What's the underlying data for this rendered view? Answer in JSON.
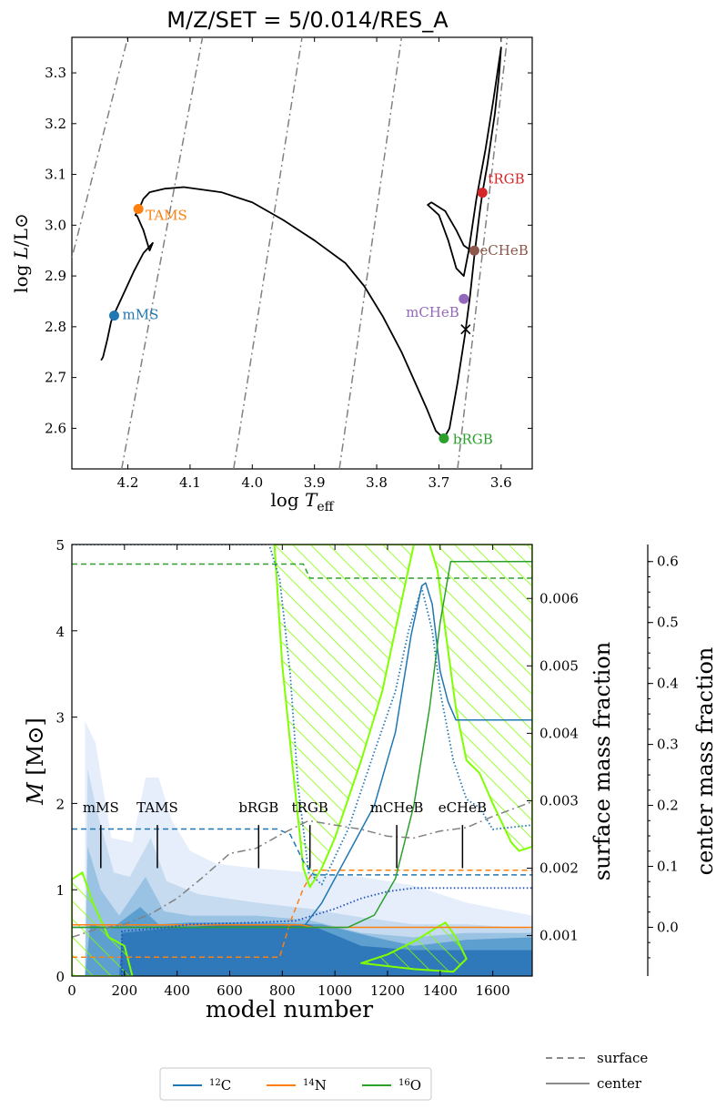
{
  "chart_data": [
    {
      "type": "line",
      "title": "M/Z/SET = 5/0.014/RES_A",
      "xlabel": "log T_eff",
      "ylabel": "log L/L⊙",
      "xlim": [
        4.29,
        3.55
      ],
      "ylim": [
        2.52,
        3.37
      ],
      "xticks": [
        4.2,
        4.1,
        4.0,
        3.9,
        3.8,
        3.7,
        3.6
      ],
      "yticks": [
        2.6,
        2.7,
        2.8,
        2.9,
        3.0,
        3.1,
        3.2,
        3.3
      ],
      "track": [
        [
          4.243,
          2.734
        ],
        [
          4.24,
          2.74
        ],
        [
          4.233,
          2.775
        ],
        [
          4.227,
          2.81
        ],
        [
          4.222,
          2.825
        ],
        [
          4.205,
          2.87
        ],
        [
          4.19,
          2.91
        ],
        [
          4.175,
          2.945
        ],
        [
          4.16,
          2.965
        ],
        [
          4.165,
          2.95
        ],
        [
          4.175,
          2.99
        ],
        [
          4.185,
          3.018
        ],
        [
          4.188,
          3.02
        ],
        [
          4.182,
          3.032
        ],
        [
          4.175,
          3.052
        ],
        [
          4.165,
          3.065
        ],
        [
          4.14,
          3.072
        ],
        [
          4.11,
          3.075
        ],
        [
          4.05,
          3.065
        ],
        [
          4.0,
          3.045
        ],
        [
          3.95,
          3.01
        ],
        [
          3.9,
          2.97
        ],
        [
          3.85,
          2.925
        ],
        [
          3.82,
          2.88
        ],
        [
          3.79,
          2.82
        ],
        [
          3.76,
          2.75
        ],
        [
          3.74,
          2.695
        ],
        [
          3.72,
          2.64
        ],
        [
          3.705,
          2.595
        ],
        [
          3.692,
          2.58
        ],
        [
          3.683,
          2.6
        ],
        [
          3.67,
          2.69
        ],
        [
          3.658,
          2.785
        ],
        [
          3.65,
          2.86
        ],
        [
          3.643,
          2.94
        ],
        [
          3.635,
          3.02
        ],
        [
          3.63,
          3.064
        ],
        [
          3.622,
          3.12
        ],
        [
          3.61,
          3.22
        ],
        [
          3.603,
          3.3
        ],
        [
          3.6,
          3.35
        ],
        [
          3.612,
          3.25
        ],
        [
          3.625,
          3.15
        ],
        [
          3.64,
          3.05
        ],
        [
          3.652,
          2.95
        ],
        [
          3.66,
          2.9
        ],
        [
          3.672,
          2.915
        ],
        [
          3.685,
          2.97
        ],
        [
          3.7,
          3.02
        ],
        [
          3.718,
          3.04
        ],
        [
          3.712,
          3.045
        ],
        [
          3.69,
          3.028
        ],
        [
          3.672,
          2.99
        ],
        [
          3.66,
          2.96
        ],
        [
          3.648,
          2.95
        ]
      ],
      "points": [
        {
          "label": "mMS",
          "x": 4.222,
          "y": 2.822,
          "color": "#1f77b4"
        },
        {
          "label": "TAMS",
          "x": 4.183,
          "y": 3.032,
          "color": "#ff7f0e"
        },
        {
          "label": "bRGB",
          "x": 3.692,
          "y": 2.58,
          "color": "#2ca02c"
        },
        {
          "label": "tRGB",
          "x": 3.63,
          "y": 3.064,
          "color": "#d62728"
        },
        {
          "label": "mCHeB",
          "x": 3.66,
          "y": 2.855,
          "color": "#9467bd"
        },
        {
          "label": "eCHeB",
          "x": 3.643,
          "y": 2.95,
          "color": "#8c564b"
        }
      ],
      "marker_x": {
        "x": 3.657,
        "y": 2.795
      },
      "iso_radius_lines": [
        [
          [
            4.37,
            2.55
          ],
          [
            4.2,
            3.37
          ]
        ],
        [
          [
            4.21,
            2.52
          ],
          [
            4.08,
            3.37
          ]
        ],
        [
          [
            4.03,
            2.52
          ],
          [
            3.92,
            3.37
          ]
        ],
        [
          [
            3.86,
            2.52
          ],
          [
            3.76,
            3.37
          ]
        ],
        [
          [
            3.67,
            2.52
          ],
          [
            3.59,
            3.37
          ]
        ]
      ]
    },
    {
      "type": "area",
      "xlabel": "model number",
      "ylabel": "M [M⊙]",
      "y2label": "surface mass fraction",
      "y3label": "center mass fraction",
      "xlim": [
        0,
        1750
      ],
      "ylim": [
        0,
        5
      ],
      "y2lim": [
        0.0004,
        0.0068
      ],
      "y3lim": [
        -0.08,
        0.628
      ],
      "xticks": [
        0,
        200,
        400,
        600,
        800,
        1000,
        1200,
        1400,
        1600
      ],
      "yticks": [
        0,
        1,
        2,
        3,
        4,
        5
      ],
      "y2ticks": [
        0.001,
        0.002,
        0.003,
        0.004,
        0.005,
        0.006
      ],
      "y2ticklabels": [
        "0.001",
        "0.002",
        "0.003",
        "0.004",
        "0.005",
        "0.006"
      ],
      "y3ticks": [
        0.0,
        0.1,
        0.2,
        0.3,
        0.4,
        0.5,
        0.6
      ],
      "y3ticklabels": [
        "0.0",
        "0.1",
        "0.2",
        "0.3",
        "0.4",
        "0.5",
        "0.6"
      ],
      "events": [
        {
          "label": "mMS",
          "x": 110
        },
        {
          "label": "TAMS",
          "x": 325
        },
        {
          "label": "bRGB",
          "x": 710
        },
        {
          "label": "tRGB",
          "x": 905
        },
        {
          "label": "mCHeB",
          "x": 1235
        },
        {
          "label": "eCHeB",
          "x": 1485
        }
      ],
      "series": [
        {
          "name": "12C surface",
          "color": "#1f77b4",
          "style": "dash",
          "axis": "surface",
          "points": [
            [
              0,
              0.00258
            ],
            [
              780,
              0.00258
            ],
            [
              830,
              0.0025
            ],
            [
              880,
              0.0021
            ],
            [
              920,
              0.0019
            ],
            [
              1750,
              0.0019
            ]
          ]
        },
        {
          "name": "14N surface",
          "color": "#ff7f0e",
          "style": "dash",
          "axis": "surface",
          "points": [
            [
              0,
              0.00068
            ],
            [
              790,
              0.00068
            ],
            [
              830,
              0.0012
            ],
            [
              880,
              0.0017
            ],
            [
              920,
              0.00197
            ],
            [
              1750,
              0.00197
            ]
          ]
        },
        {
          "name": "16O surface",
          "color": "#2ca02c",
          "style": "dash",
          "axis": "surface",
          "points": [
            [
              0,
              0.00651
            ],
            [
              880,
              0.00651
            ],
            [
              905,
              0.0063
            ],
            [
              1750,
              0.0063
            ]
          ]
        },
        {
          "name": "12C center",
          "color": "#1f77b4",
          "style": "solid",
          "axis": "center",
          "points": [
            [
              0,
              0.0
            ],
            [
              880,
              0.0
            ],
            [
              950,
              0.04
            ],
            [
              1050,
              0.12
            ],
            [
              1150,
              0.2
            ],
            [
              1230,
              0.32
            ],
            [
              1290,
              0.48
            ],
            [
              1330,
              0.56
            ],
            [
              1345,
              0.565
            ],
            [
              1370,
              0.53
            ],
            [
              1400,
              0.42
            ],
            [
              1430,
              0.37
            ],
            [
              1460,
              0.34
            ],
            [
              1750,
              0.34
            ]
          ]
        },
        {
          "name": "14N center",
          "color": "#ff7f0e",
          "style": "solid",
          "axis": "center",
          "points": [
            [
              0,
              0.004
            ],
            [
              870,
              0.004
            ],
            [
              920,
              0.0
            ],
            [
              1750,
              0.0
            ]
          ]
        },
        {
          "name": "16O center",
          "color": "#2ca02c",
          "style": "solid",
          "axis": "center",
          "points": [
            [
              0,
              0.0
            ],
            [
              1050,
              0.0
            ],
            [
              1150,
              0.02
            ],
            [
              1230,
              0.08
            ],
            [
              1300,
              0.2
            ],
            [
              1360,
              0.36
            ],
            [
              1400,
              0.5
            ],
            [
              1440,
              0.6
            ],
            [
              1750,
              0.6
            ]
          ]
        },
        {
          "name": "mass profile",
          "color": "#808080",
          "style": "dashdot",
          "axis": "mass",
          "points": [
            [
              0,
              0.45
            ],
            [
              100,
              0.55
            ],
            [
              200,
              0.6
            ],
            [
              300,
              0.72
            ],
            [
              400,
              0.9
            ],
            [
              500,
              1.15
            ],
            [
              600,
              1.42
            ],
            [
              700,
              1.48
            ],
            [
              800,
              1.65
            ],
            [
              900,
              1.8
            ],
            [
              1000,
              1.75
            ],
            [
              1100,
              1.7
            ],
            [
              1200,
              1.62
            ],
            [
              1300,
              1.6
            ],
            [
              1400,
              1.68
            ],
            [
              1500,
              1.72
            ],
            [
              1600,
              1.85
            ],
            [
              1750,
              2.02
            ]
          ]
        },
        {
          "name": "He core mass",
          "color": "#1f4fbf",
          "style": "dot",
          "axis": "mass",
          "points": [
            [
              190,
              0.0
            ],
            [
              190,
              0.52
            ],
            [
              350,
              0.56
            ],
            [
              450,
              0.6
            ],
            [
              700,
              0.62
            ],
            [
              850,
              0.64
            ],
            [
              1000,
              0.78
            ],
            [
              1100,
              0.9
            ],
            [
              1200,
              0.98
            ],
            [
              1300,
              1.02
            ],
            [
              1750,
              1.02
            ]
          ]
        },
        {
          "name": "surface H boundary",
          "color": "#1f77b4",
          "style": "dot",
          "axis": "mass",
          "points": [
            [
              0,
              5
            ],
            [
              750,
              5
            ],
            [
              790,
              4.6
            ],
            [
              830,
              3.5
            ],
            [
              860,
              2.2
            ],
            [
              900,
              1.2
            ],
            [
              950,
              1.06
            ],
            [
              1050,
              1.7
            ],
            [
              1150,
              2.6
            ],
            [
              1230,
              3.3
            ],
            [
              1280,
              4.0
            ],
            [
              1330,
              4.5
            ],
            [
              1370,
              4.0
            ],
            [
              1400,
              3.3
            ],
            [
              1450,
              2.5
            ],
            [
              1500,
              2.05
            ],
            [
              1550,
              1.95
            ],
            [
              1600,
              1.7
            ],
            [
              1750,
              1.75
            ]
          ]
        }
      ],
      "hatched_regions": [
        {
          "name": "surface convective zone",
          "points": [
            [
              770,
              5
            ],
            [
              800,
              3.6
            ],
            [
              840,
              2.4
            ],
            [
              880,
              1.25
            ],
            [
              905,
              1.03
            ],
            [
              950,
              1.25
            ],
            [
              1000,
              1.6
            ],
            [
              1100,
              2.5
            ],
            [
              1180,
              3.3
            ],
            [
              1250,
              4.3
            ],
            [
              1300,
              5.0
            ],
            [
              1360,
              5.0
            ],
            [
              1390,
              4.7
            ],
            [
              1420,
              4.0
            ],
            [
              1460,
              3.1
            ],
            [
              1500,
              2.5
            ],
            [
              1550,
              2.35
            ],
            [
              1600,
              2.0
            ],
            [
              1670,
              1.55
            ],
            [
              1700,
              1.45
            ],
            [
              1750,
              1.5
            ],
            [
              1750,
              5.0
            ]
          ]
        },
        {
          "name": "core convection MS",
          "points": [
            [
              0,
              0
            ],
            [
              0,
              1.12
            ],
            [
              40,
              1.2
            ],
            [
              80,
              0.85
            ],
            [
              140,
              0.45
            ],
            [
              200,
              0.35
            ],
            [
              230,
              0.0
            ]
          ]
        },
        {
          "name": "He core convection",
          "points": [
            [
              1100,
              0.15
            ],
            [
              1200,
              0.25
            ],
            [
              1300,
              0.4
            ],
            [
              1380,
              0.55
            ],
            [
              1420,
              0.62
            ],
            [
              1460,
              0.45
            ],
            [
              1500,
              0.2
            ],
            [
              1450,
              0.05
            ],
            [
              1300,
              0.08
            ]
          ]
        }
      ],
      "legend": [
        {
          "label": "12C",
          "color": "#1f77b4"
        },
        {
          "label": "14N",
          "color": "#ff7f0e"
        },
        {
          "label": "16O",
          "color": "#2ca02c"
        }
      ],
      "style_legend": [
        {
          "label": "surface",
          "style": "dash"
        },
        {
          "label": "center",
          "style": "solid"
        }
      ]
    }
  ],
  "labels": {
    "title": "M/Z/SET = 5/0.014/RES_A",
    "hrd_xlabel_main": "log",
    "hrd_xlabel_var": "T",
    "hrd_xlabel_sub": "eff",
    "hrd_ylabel_main": "log",
    "hrd_ylabel_var": "L",
    "hrd_ylabel_tail": "/L⊙",
    "kip_xlabel": "model number",
    "kip_ylabel_var": "M",
    "kip_ylabel_tail": "[M⊙]",
    "y2_label": "surface mass fraction",
    "y3_label": "center mass fraction",
    "leg_c_sup": "12",
    "leg_c_el": "C",
    "leg_n_sup": "14",
    "leg_n_el": "N",
    "leg_o_sup": "16",
    "leg_o_el": "O",
    "style_surface": "surface",
    "style_center": "center"
  }
}
